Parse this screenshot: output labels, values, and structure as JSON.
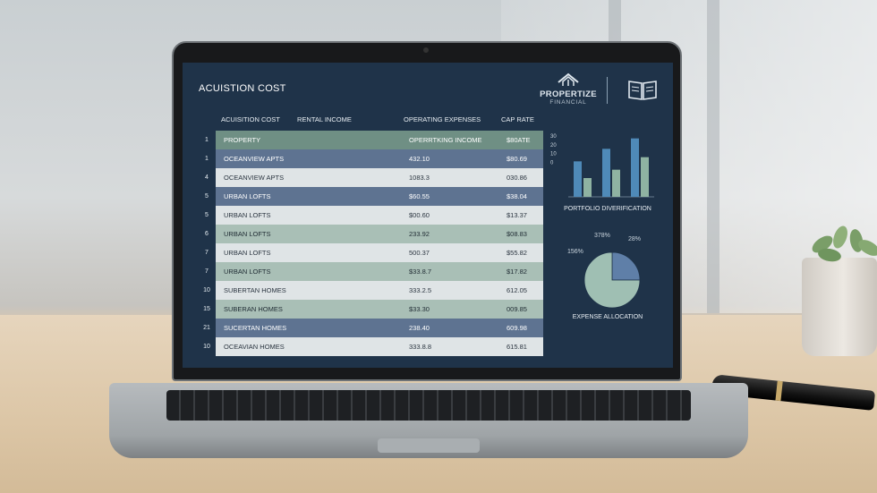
{
  "screen": {
    "title": "ACUISTION COST",
    "brand": {
      "name": "PROPERTIZE",
      "sub": "FINANCIAL"
    }
  },
  "table": {
    "headers": [
      "ACUISITION COST",
      "RENTAL INCOME",
      "OPERATING EXPENSES",
      "CAP RATE"
    ],
    "rows": [
      {
        "num": "1",
        "property": "PROPERTY",
        "val1": "OPERRTKING INCOME",
        "val2": "$80ATE",
        "style": "header"
      },
      {
        "num": "1",
        "property": "OCEANVIEW APTS",
        "val1": "432.10",
        "val2": "$80.69",
        "style": "slate"
      },
      {
        "num": "4",
        "property": "OCEANVIEW APTS",
        "val1": "1083.3",
        "val2": "030.86",
        "style": "light"
      },
      {
        "num": "5",
        "property": "URBAN LOFTS",
        "val1": "$60.55",
        "val2": "$38.04",
        "style": "slate"
      },
      {
        "num": "5",
        "property": "URBAN LOFTS",
        "val1": "$00.60",
        "val2": "$13.37",
        "style": "light"
      },
      {
        "num": "6",
        "property": "URBAN LOFTS",
        "val1": "233.92",
        "val2": "$08.83",
        "style": "sage"
      },
      {
        "num": "7",
        "property": "URBAN LOFTS",
        "val1": "500.37",
        "val2": "$55.82",
        "style": "light"
      },
      {
        "num": "7",
        "property": "URBAN LOFTS",
        "val1": "$33.8.7",
        "val2": "$17.82",
        "style": "sage"
      },
      {
        "num": "10",
        "property": "SUBERTAN HOMES",
        "val1": "333.2.5",
        "val2": "612.05",
        "style": "light"
      },
      {
        "num": "15",
        "property": "SUBERAN HOMES",
        "val1": "$33.30",
        "val2": "009.85",
        "style": "sage"
      },
      {
        "num": "21",
        "property": "SUCERTAN HOMES",
        "val1": "238.40",
        "val2": "609.98",
        "style": "slate"
      },
      {
        "num": "10",
        "property": "OCEAVIAN HOMES",
        "val1": "333.8.8",
        "val2": "615.81",
        "style": "light"
      }
    ]
  },
  "styles": {
    "header": {
      "bg": "#6f8f84",
      "fg": "#ffffff"
    },
    "slate": {
      "bg": "#5e7391",
      "fg": "#ffffff"
    },
    "light": {
      "bg": "#dfe4e6",
      "fg": "#2b3540"
    },
    "sage": {
      "bg": "#a9bfb6",
      "fg": "#1f2b33"
    }
  },
  "chart_data": [
    {
      "type": "bar",
      "title": "PORTFOLIO DIVERIFICATION",
      "yticks": [
        "30",
        "20",
        "10",
        "0"
      ],
      "ylim": [
        0,
        30
      ],
      "series": [
        {
          "color": "#4f8ab8",
          "values": [
            17,
            23,
            28
          ]
        },
        {
          "color": "#8fb3a2",
          "values": [
            9,
            13,
            19
          ]
        }
      ]
    },
    {
      "type": "pie",
      "title": "EXPENSE ALLOCATION",
      "labels": [
        "378%",
        "28%",
        "156%"
      ],
      "slices": [
        {
          "value": 25,
          "color": "#5f7fa8"
        },
        {
          "value": 75,
          "color": "#9fbfb3"
        }
      ]
    }
  ]
}
